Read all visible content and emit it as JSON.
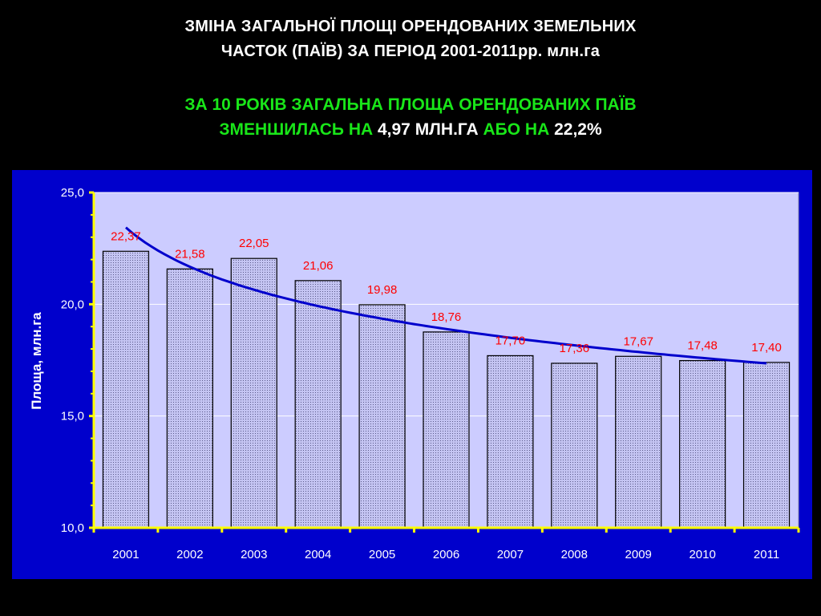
{
  "title_line1": "ЗМІНА ЗАГАЛЬНОЇ ПЛОЩІ ОРЕНДОВАНИХ ЗЕМЕЛЬНИХ",
  "title_line2": "ЧАСТОК (ПАЇВ) ЗА ПЕРІОД 2001-2011рр. млн.га",
  "subtitle": {
    "line1": "ЗА 10 РОКІВ ЗАГАЛЬНА ПЛОЩА ОРЕНДОВАНИХ ПАЇВ",
    "line2_part1": "ЗМЕНШИЛАСЬ НА ",
    "line2_part2": "4,97 МЛН.ГА",
    "line2_part3": " АБО НА ",
    "line2_part4": "22,2%"
  },
  "colors": {
    "background": "#000000",
    "panel": "#0000cc",
    "plot_area": "#ccccff",
    "bar": "#bdbdf0",
    "trend": "#0000cc",
    "data_label": "#ff0000",
    "subtitle_green": "#19e619"
  },
  "chart_data": {
    "type": "bar",
    "categories": [
      "2001",
      "2002",
      "2003",
      "2004",
      "2005",
      "2006",
      "2007",
      "2008",
      "2009",
      "2010",
      "2011"
    ],
    "values": [
      22.37,
      21.58,
      22.05,
      21.06,
      19.98,
      18.76,
      17.7,
      17.36,
      17.67,
      17.48,
      17.4
    ],
    "value_labels": [
      "22,37",
      "21,58",
      "22,05",
      "21,06",
      "19,98",
      "18,76",
      "17,70",
      "17,36",
      "17,67",
      "17,48",
      "17,40"
    ],
    "trendline": true,
    "ylabel": "Площа, млн.га",
    "ylim": [
      10,
      25
    ],
    "yticks": [
      10,
      15,
      20,
      25
    ],
    "ytick_labels": [
      "10,0",
      "15,0",
      "20,0",
      "25,0"
    ],
    "grid": true
  }
}
